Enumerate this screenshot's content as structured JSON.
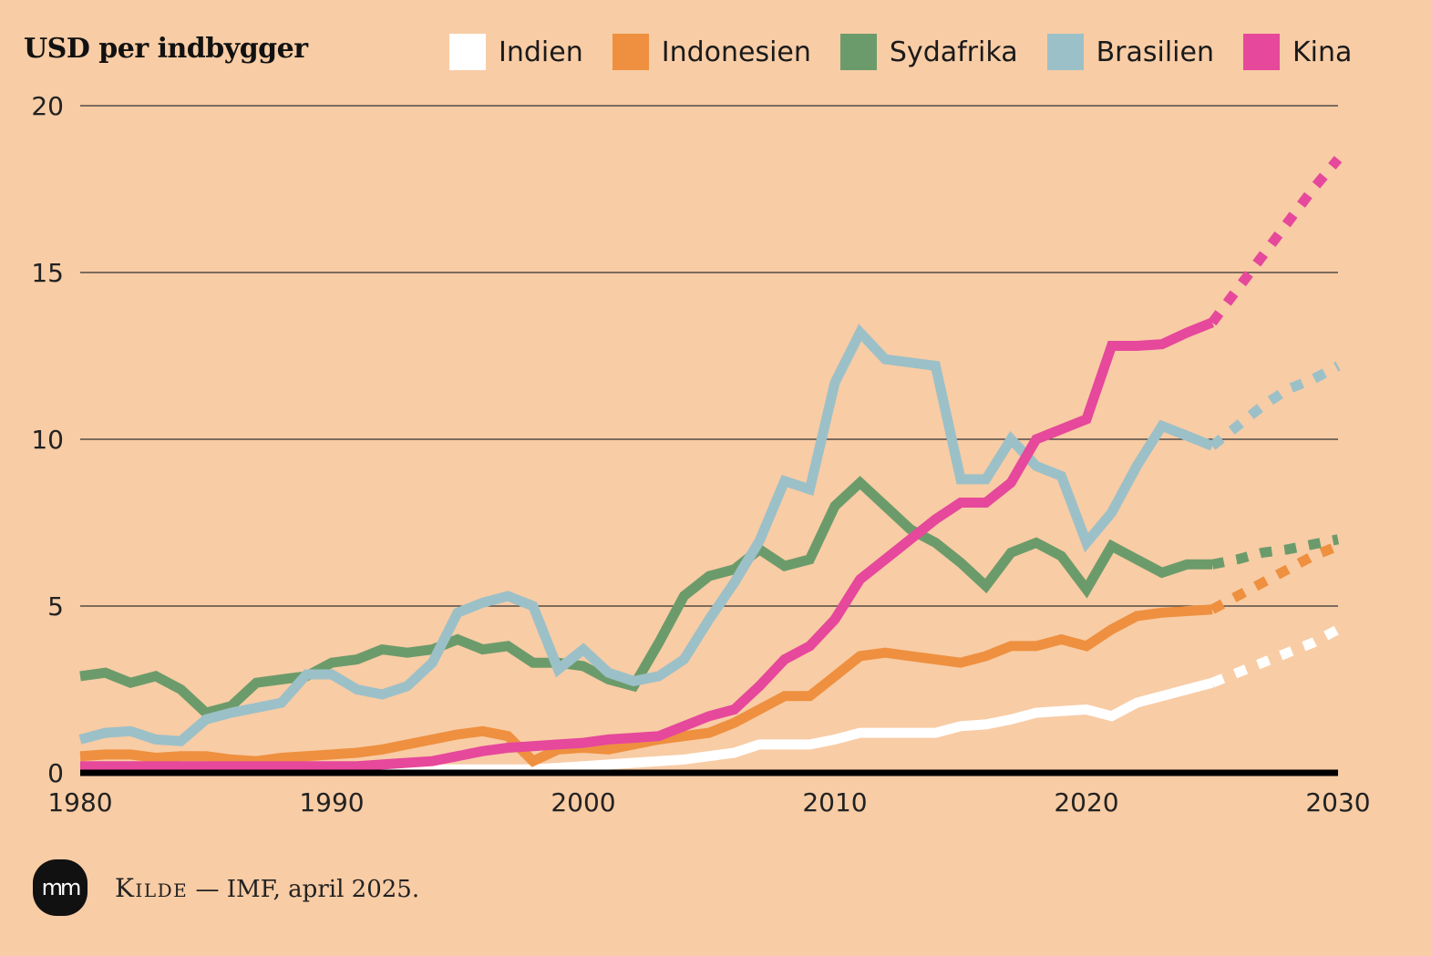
{
  "chart_data": {
    "type": "line",
    "title": "USD per indbygger",
    "ylim": [
      0,
      20
    ],
    "xlim": [
      1980,
      2030
    ],
    "yticks": [
      0,
      5,
      10,
      15,
      20
    ],
    "xticks": [
      1980,
      1990,
      2000,
      2010,
      2020,
      2030
    ],
    "grid": true,
    "legend_position": "top",
    "projection_start": 2025,
    "series": [
      {
        "name": "Indien",
        "color": "#ffffff",
        "x": [
          1980,
          1982,
          1984,
          1986,
          1988,
          1990,
          1992,
          1994,
          1996,
          1998,
          2000,
          2002,
          2004,
          2006,
          2007,
          2008,
          2009,
          2010,
          2011,
          2012,
          2013,
          2014,
          2015,
          2016,
          2017,
          2018,
          2019,
          2020,
          2021,
          2022,
          2023,
          2024,
          2025,
          2026,
          2027,
          2028,
          2029,
          2030
        ],
        "y": [
          0.1,
          0.1,
          0.1,
          0.1,
          0.1,
          0.1,
          0.1,
          0.1,
          0.1,
          0.1,
          0.2,
          0.3,
          0.4,
          0.6,
          0.85,
          0.85,
          0.85,
          1.0,
          1.2,
          1.2,
          1.2,
          1.2,
          1.4,
          1.45,
          1.6,
          1.8,
          1.85,
          1.9,
          1.7,
          2.1,
          2.3,
          2.5,
          2.7,
          3.0,
          3.3,
          3.6,
          3.9,
          4.3
        ]
      },
      {
        "name": "Indonesien",
        "color": "#ee903f",
        "x": [
          1980,
          1981,
          1982,
          1983,
          1984,
          1985,
          1986,
          1987,
          1988,
          1989,
          1990,
          1991,
          1992,
          1993,
          1994,
          1995,
          1996,
          1997,
          1998,
          1999,
          2000,
          2001,
          2002,
          2003,
          2004,
          2005,
          2006,
          2007,
          2008,
          2009,
          2010,
          2011,
          2012,
          2013,
          2014,
          2015,
          2016,
          2017,
          2018,
          2019,
          2020,
          2021,
          2022,
          2023,
          2024,
          2025,
          2026,
          2027,
          2028,
          2029,
          2030
        ],
        "y": [
          0.5,
          0.55,
          0.55,
          0.45,
          0.5,
          0.5,
          0.4,
          0.35,
          0.45,
          0.5,
          0.55,
          0.6,
          0.7,
          0.85,
          1.0,
          1.15,
          1.25,
          1.1,
          0.35,
          0.7,
          0.75,
          0.7,
          0.85,
          1.0,
          1.1,
          1.2,
          1.5,
          1.9,
          2.3,
          2.3,
          2.9,
          3.5,
          3.6,
          3.5,
          3.4,
          3.3,
          3.5,
          3.8,
          3.8,
          4.0,
          3.8,
          4.3,
          4.7,
          4.8,
          4.85,
          4.9,
          5.3,
          5.7,
          6.1,
          6.5,
          6.8
        ]
      },
      {
        "name": "Sydafrika",
        "color": "#6c9b6b",
        "x": [
          1980,
          1981,
          1982,
          1983,
          1984,
          1985,
          1986,
          1987,
          1988,
          1989,
          1990,
          1991,
          1992,
          1993,
          1994,
          1995,
          1996,
          1997,
          1998,
          1999,
          2000,
          2001,
          2002,
          2003,
          2004,
          2005,
          2006,
          2007,
          2008,
          2009,
          2010,
          2011,
          2012,
          2013,
          2014,
          2015,
          2016,
          2017,
          2018,
          2019,
          2020,
          2021,
          2022,
          2023,
          2024,
          2025,
          2026,
          2027,
          2028,
          2029,
          2030
        ],
        "y": [
          2.9,
          3.0,
          2.7,
          2.9,
          2.5,
          1.8,
          2.0,
          2.7,
          2.8,
          2.9,
          3.3,
          3.4,
          3.7,
          3.6,
          3.7,
          4.0,
          3.7,
          3.8,
          3.3,
          3.3,
          3.2,
          2.8,
          2.6,
          3.9,
          5.3,
          5.9,
          6.1,
          6.7,
          6.2,
          6.4,
          8.0,
          8.7,
          8.0,
          7.3,
          6.9,
          6.3,
          5.6,
          6.6,
          6.9,
          6.5,
          5.5,
          6.8,
          6.4,
          6.0,
          6.25,
          6.25,
          6.4,
          6.6,
          6.7,
          6.85,
          7.0
        ]
      },
      {
        "name": "Brasilien",
        "color": "#9cc0c8",
        "x": [
          1980,
          1981,
          1982,
          1983,
          1984,
          1985,
          1986,
          1987,
          1988,
          1989,
          1990,
          1991,
          1992,
          1993,
          1994,
          1995,
          1996,
          1997,
          1998,
          1999,
          2000,
          2001,
          2002,
          2003,
          2004,
          2005,
          2006,
          2007,
          2008,
          2009,
          2010,
          2011,
          2012,
          2013,
          2014,
          2015,
          2016,
          2017,
          2018,
          2019,
          2020,
          2021,
          2022,
          2023,
          2024,
          2025,
          2026,
          2027,
          2028,
          2029,
          2030
        ],
        "y": [
          1.0,
          1.2,
          1.25,
          1.0,
          0.95,
          1.6,
          1.8,
          1.95,
          2.1,
          2.95,
          2.95,
          2.5,
          2.35,
          2.6,
          3.3,
          4.8,
          5.1,
          5.3,
          5.0,
          3.1,
          3.7,
          3.0,
          2.75,
          2.9,
          3.4,
          4.6,
          5.7,
          6.95,
          8.75,
          8.5,
          11.7,
          13.2,
          12.4,
          12.3,
          12.2,
          8.8,
          8.8,
          10.0,
          9.2,
          8.9,
          6.9,
          7.8,
          9.2,
          10.4,
          10.1,
          9.8,
          10.4,
          11.0,
          11.5,
          11.8,
          12.2
        ]
      },
      {
        "name": "Kina",
        "color": "#e6489b",
        "x": [
          1980,
          1984,
          1988,
          1990,
          1991,
          1992,
          1993,
          1994,
          1995,
          1996,
          1997,
          1998,
          1999,
          2000,
          2001,
          2002,
          2003,
          2004,
          2005,
          2006,
          2007,
          2008,
          2009,
          2010,
          2011,
          2012,
          2013,
          2014,
          2015,
          2016,
          2017,
          2018,
          2019,
          2020,
          2021,
          2022,
          2023,
          2024,
          2025,
          2026,
          2027,
          2028,
          2029,
          2030
        ],
        "y": [
          0.2,
          0.2,
          0.2,
          0.2,
          0.2,
          0.25,
          0.3,
          0.35,
          0.5,
          0.65,
          0.75,
          0.8,
          0.85,
          0.9,
          1.0,
          1.05,
          1.1,
          1.4,
          1.7,
          1.9,
          2.6,
          3.4,
          3.8,
          4.6,
          5.8,
          6.4,
          7.0,
          7.6,
          8.1,
          8.1,
          8.7,
          10.0,
          10.3,
          10.6,
          12.8,
          12.8,
          12.85,
          13.2,
          13.5,
          14.5,
          15.5,
          16.5,
          17.5,
          18.4
        ]
      }
    ],
    "source_label": "Kilde",
    "source_dash": "—",
    "source_text": "IMF, april 2025."
  },
  "logo_text": "mm"
}
